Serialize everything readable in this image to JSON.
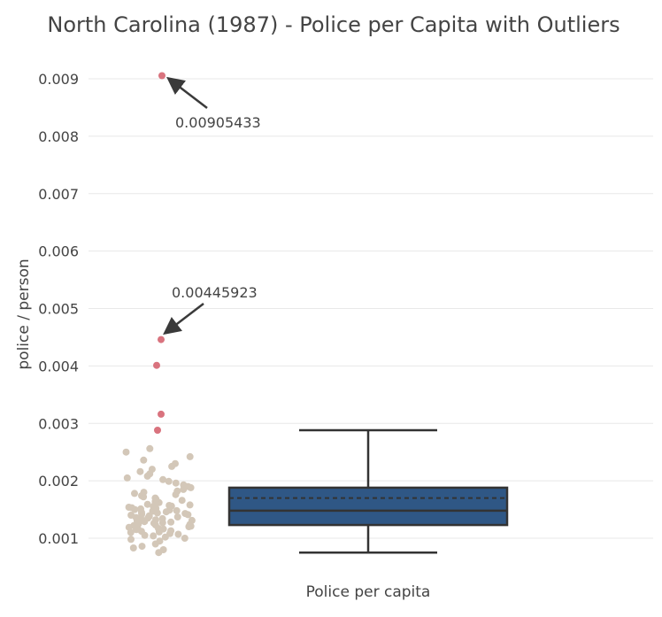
{
  "chart_data": {
    "type": "box",
    "title": "North Carolina (1987) - Police per Capita with Outliers",
    "xlabel": "",
    "ylabel": "police / person",
    "category": "Police per capita",
    "ylim": [
      0.0007,
      0.0093
    ],
    "yticks": [
      "0.001",
      "0.002",
      "0.003",
      "0.004",
      "0.005",
      "0.006",
      "0.007",
      "0.008",
      "0.009"
    ],
    "grid": true,
    "box": {
      "lower_whisker": 0.00075,
      "q1": 0.00123,
      "median": 0.00148,
      "mean": 0.0017,
      "q3": 0.00188,
      "upper_whisker": 0.00288,
      "color": "#2f5785",
      "line_color": "#333333"
    },
    "outliers": [
      0.00905433,
      0.00445923,
      0.00401,
      0.00316,
      0.00288
    ],
    "outlier_color": "#d9737e",
    "point_color": "#d3c7b8",
    "points": [
      0.00075,
      0.0008,
      0.00083,
      0.00086,
      0.0009,
      0.00095,
      0.00098,
      0.001,
      0.00102,
      0.00104,
      0.00105,
      0.00107,
      0.00108,
      0.0011,
      0.00111,
      0.00112,
      0.00113,
      0.00115,
      0.00116,
      0.00117,
      0.00118,
      0.00119,
      0.0012,
      0.00121,
      0.00122,
      0.00123,
      0.00124,
      0.00125,
      0.00126,
      0.00127,
      0.00128,
      0.00129,
      0.0013,
      0.00131,
      0.00132,
      0.00133,
      0.00134,
      0.00135,
      0.00136,
      0.00137,
      0.00138,
      0.00139,
      0.0014,
      0.00141,
      0.00142,
      0.00143,
      0.00144,
      0.00145,
      0.00146,
      0.00147,
      0.00148,
      0.00149,
      0.0015,
      0.00151,
      0.00152,
      0.00153,
      0.00154,
      0.00155,
      0.00156,
      0.00157,
      0.00158,
      0.00159,
      0.0016,
      0.00162,
      0.00164,
      0.00166,
      0.00168,
      0.0017,
      0.00172,
      0.00174,
      0.00176,
      0.00178,
      0.0018,
      0.00182,
      0.00185,
      0.00188,
      0.0019,
      0.00193,
      0.00196,
      0.00199,
      0.00202,
      0.00205,
      0.00208,
      0.00212,
      0.00216,
      0.0022,
      0.00225,
      0.0023,
      0.00236,
      0.00242,
      0.0025,
      0.00256
    ],
    "annotations": [
      {
        "text": "0.00905433",
        "value": 0.00905433
      },
      {
        "text": "0.00445923",
        "value": 0.00445923
      }
    ]
  }
}
